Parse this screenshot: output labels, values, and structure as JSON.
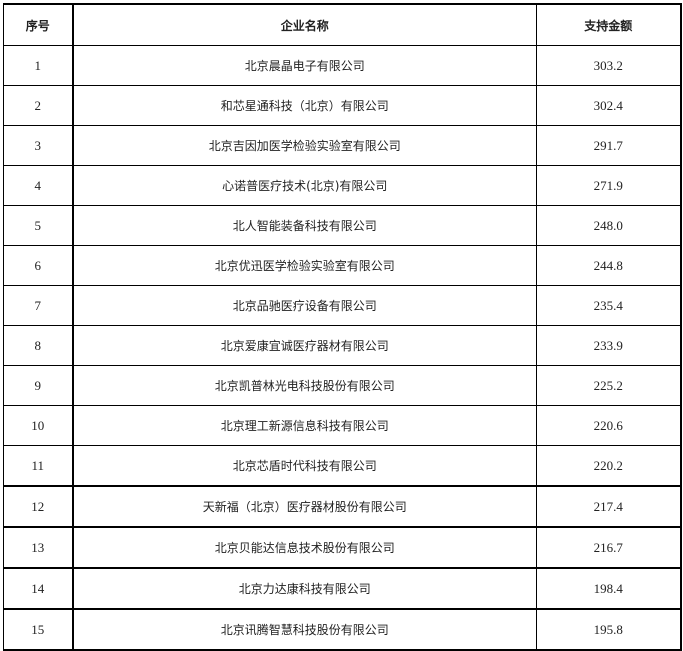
{
  "headers": [
    "序号",
    "企业名称",
    "支持金额"
  ],
  "rows": [
    {
      "no": "1",
      "name": "北京晨晶电子有限公司",
      "amount": "303.2"
    },
    {
      "no": "2",
      "name": "和芯星通科技（北京）有限公司",
      "amount": "302.4"
    },
    {
      "no": "3",
      "name": "北京吉因加医学检验实验室有限公司",
      "amount": "291.7"
    },
    {
      "no": "4",
      "name": "心诺普医疗技术(北京)有限公司",
      "amount": "271.9"
    },
    {
      "no": "5",
      "name": "北人智能装备科技有限公司",
      "amount": "248.0"
    },
    {
      "no": "6",
      "name": "北京优迅医学检验实验室有限公司",
      "amount": "244.8"
    },
    {
      "no": "7",
      "name": "北京品驰医疗设备有限公司",
      "amount": "235.4"
    },
    {
      "no": "8",
      "name": "北京爱康宜诚医疗器材有限公司",
      "amount": "233.9"
    },
    {
      "no": "9",
      "name": "北京凯普林光电科技股份有限公司",
      "amount": "225.2"
    },
    {
      "no": "10",
      "name": "北京理工新源信息科技有限公司",
      "amount": "220.6"
    },
    {
      "no": "11",
      "name": "北京芯盾时代科技有限公司",
      "amount": "220.2"
    },
    {
      "no": "12",
      "name": "天新福（北京）医疗器材股份有限公司",
      "amount": "217.4"
    },
    {
      "no": "13",
      "name": "北京贝能达信息技术股份有限公司",
      "amount": "216.7"
    },
    {
      "no": "14",
      "name": "北京力达康科技有限公司",
      "amount": "198.4"
    },
    {
      "no": "15",
      "name": "北京讯腾智慧科技股份有限公司",
      "amount": "195.8"
    }
  ]
}
